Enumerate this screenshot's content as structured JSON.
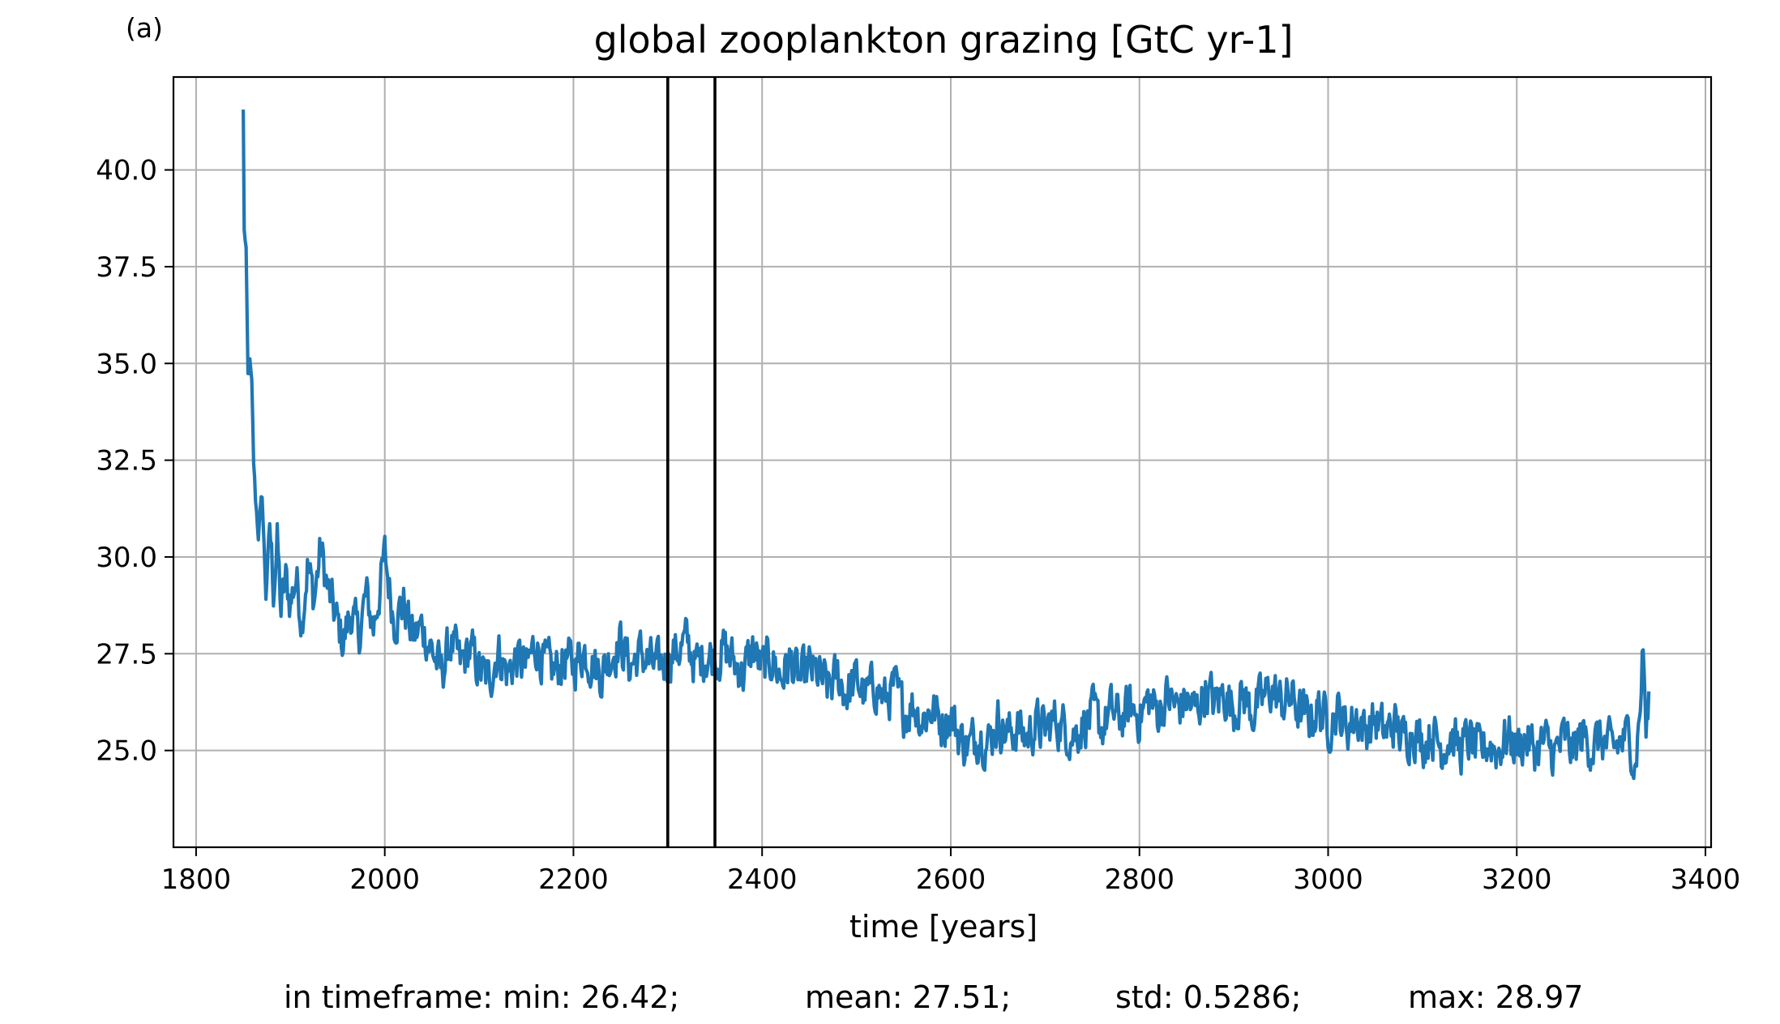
{
  "panel_label": "(a)",
  "colors": {
    "series": "#1f77b4",
    "grid": "#b0b0b0",
    "marker_lines": "#000000",
    "axes": "#000000"
  },
  "stats": {
    "min": "in timeframe: min: 26.42;",
    "mean": "mean: 27.51;",
    "std": "std: 0.5286;",
    "max": "max: 28.97"
  },
  "chart_data": {
    "type": "line",
    "title": "global zooplankton grazing [GtC yr-1]",
    "xlabel": "time [years]",
    "ylabel": "",
    "xlim": [
      1776,
      3406
    ],
    "ylim": [
      22.5,
      42.4
    ],
    "x_ticks": [
      1800,
      2000,
      2200,
      2400,
      2600,
      2800,
      3000,
      3200,
      3400
    ],
    "x_tick_labels": [
      "1800",
      "2000",
      "2200",
      "2400",
      "2600",
      "2800",
      "3000",
      "3200",
      "3400"
    ],
    "y_ticks": [
      25.0,
      27.5,
      30.0,
      32.5,
      35.0,
      37.5,
      40.0
    ],
    "y_tick_labels": [
      "25.0",
      "27.5",
      "30.0",
      "32.5",
      "35.0",
      "37.5",
      "40.0"
    ],
    "grid": true,
    "legend": "none",
    "vertical_lines": [
      2300,
      2350
    ],
    "series": [
      {
        "x_start": 1850,
        "x_end": 3340,
        "points": [
          [
            1850,
            41.5
          ],
          [
            1851,
            38.5
          ],
          [
            1853,
            37.8
          ],
          [
            1855,
            34.6
          ],
          [
            1857,
            35.0
          ],
          [
            1859,
            34.4
          ],
          [
            1861,
            32.4
          ],
          [
            1863,
            31.5
          ],
          [
            1866,
            30.6
          ],
          [
            1870,
            31.6
          ],
          [
            1874,
            29.0
          ],
          [
            1878,
            30.8
          ],
          [
            1882,
            29.2
          ],
          [
            1886,
            30.4
          ],
          [
            1890,
            28.6
          ],
          [
            1895,
            29.4
          ],
          [
            1900,
            28.8
          ],
          [
            1906,
            29.5
          ],
          [
            1912,
            28.4
          ],
          [
            1918,
            29.8
          ],
          [
            1925,
            28.9
          ],
          [
            1932,
            30.2
          ],
          [
            1940,
            29.1
          ],
          [
            1948,
            28.4
          ],
          [
            1956,
            27.8
          ],
          [
            1964,
            28.6
          ],
          [
            1972,
            27.9
          ],
          [
            1980,
            29.0
          ],
          [
            1988,
            28.2
          ],
          [
            2000,
            30.0
          ],
          [
            2010,
            28.4
          ],
          [
            2020,
            28.8
          ],
          [
            2030,
            27.9
          ],
          [
            2040,
            28.2
          ],
          [
            2050,
            27.6
          ],
          [
            2060,
            27.0
          ],
          [
            2070,
            27.8
          ],
          [
            2080,
            27.2
          ],
          [
            2090,
            27.6
          ],
          [
            2100,
            27.1
          ],
          [
            2110,
            26.8
          ],
          [
            2120,
            27.6
          ],
          [
            2130,
            27.0
          ],
          [
            2140,
            27.4
          ],
          [
            2150,
            27.1
          ],
          [
            2160,
            27.8
          ],
          [
            2170,
            27.2
          ],
          [
            2180,
            27.0
          ],
          [
            2190,
            27.4
          ],
          [
            2200,
            27.2
          ],
          [
            2210,
            27.6
          ],
          [
            2220,
            27.3
          ],
          [
            2230,
            27.0
          ],
          [
            2240,
            27.5
          ],
          [
            2250,
            27.8
          ],
          [
            2260,
            27.2
          ],
          [
            2270,
            27.5
          ],
          [
            2280,
            27.3
          ],
          [
            2290,
            27.1
          ],
          [
            2300,
            27.4
          ],
          [
            2310,
            27.6
          ],
          [
            2320,
            27.8
          ],
          [
            2330,
            27.2
          ],
          [
            2340,
            27.5
          ],
          [
            2350,
            27.4
          ],
          [
            2360,
            27.6
          ],
          [
            2370,
            27.3
          ],
          [
            2380,
            27.0
          ],
          [
            2390,
            27.6
          ],
          [
            2400,
            27.1
          ],
          [
            2410,
            27.4
          ],
          [
            2420,
            26.9
          ],
          [
            2430,
            27.3
          ],
          [
            2440,
            26.8
          ],
          [
            2450,
            27.1
          ],
          [
            2460,
            26.9
          ],
          [
            2470,
            26.6
          ],
          [
            2480,
            26.9
          ],
          [
            2490,
            26.5
          ],
          [
            2500,
            26.8
          ],
          [
            2510,
            26.4
          ],
          [
            2520,
            26.7
          ],
          [
            2530,
            26.3
          ],
          [
            2540,
            26.6
          ],
          [
            2550,
            26.0
          ],
          [
            2560,
            26.2
          ],
          [
            2570,
            25.8
          ],
          [
            2580,
            26.1
          ],
          [
            2590,
            25.7
          ],
          [
            2600,
            25.9
          ],
          [
            2610,
            25.3
          ],
          [
            2620,
            25.1
          ],
          [
            2630,
            25.5
          ],
          [
            2640,
            25.2
          ],
          [
            2650,
            25.8
          ],
          [
            2660,
            25.4
          ],
          [
            2670,
            25.6
          ],
          [
            2680,
            25.3
          ],
          [
            2690,
            25.7
          ],
          [
            2700,
            25.5
          ],
          [
            2710,
            25.8
          ],
          [
            2720,
            25.6
          ],
          [
            2730,
            25.4
          ],
          [
            2740,
            25.7
          ],
          [
            2750,
            25.9
          ],
          [
            2760,
            25.6
          ],
          [
            2770,
            26.0
          ],
          [
            2780,
            25.8
          ],
          [
            2790,
            26.1
          ],
          [
            2800,
            25.9
          ],
          [
            2810,
            26.3
          ],
          [
            2820,
            26.0
          ],
          [
            2830,
            26.4
          ],
          [
            2840,
            26.1
          ],
          [
            2850,
            26.3
          ],
          [
            2860,
            26.0
          ],
          [
            2870,
            26.6
          ],
          [
            2880,
            26.2
          ],
          [
            2890,
            26.5
          ],
          [
            2900,
            26.1
          ],
          [
            2910,
            26.4
          ],
          [
            2920,
            26.0
          ],
          [
            2930,
            26.3
          ],
          [
            2940,
            26.6
          ],
          [
            2950,
            26.2
          ],
          [
            2960,
            26.4
          ],
          [
            2970,
            26.0
          ],
          [
            2980,
            25.8
          ],
          [
            2990,
            26.1
          ],
          [
            3000,
            25.7
          ],
          [
            3010,
            26.0
          ],
          [
            3020,
            25.6
          ],
          [
            3030,
            25.9
          ],
          [
            3040,
            25.5
          ],
          [
            3050,
            25.8
          ],
          [
            3060,
            25.4
          ],
          [
            3070,
            25.7
          ],
          [
            3080,
            25.3
          ],
          [
            3090,
            25.6
          ],
          [
            3100,
            25.2
          ],
          [
            3110,
            25.5
          ],
          [
            3120,
            25.1
          ],
          [
            3130,
            25.4
          ],
          [
            3140,
            25.0
          ],
          [
            3150,
            25.3
          ],
          [
            3160,
            24.9
          ],
          [
            3170,
            25.2
          ],
          [
            3180,
            25.0
          ],
          [
            3190,
            25.4
          ],
          [
            3200,
            25.1
          ],
          [
            3210,
            25.3
          ],
          [
            3220,
            25.0
          ],
          [
            3230,
            25.2
          ],
          [
            3240,
            24.9
          ],
          [
            3250,
            25.3
          ],
          [
            3260,
            25.0
          ],
          [
            3270,
            25.4
          ],
          [
            3280,
            25.1
          ],
          [
            3290,
            25.3
          ],
          [
            3300,
            25.0
          ],
          [
            3310,
            25.2
          ],
          [
            3320,
            25.4
          ],
          [
            3325,
            24.6
          ],
          [
            3330,
            25.8
          ],
          [
            3334,
            27.7
          ],
          [
            3337,
            25.5
          ],
          [
            3340,
            26.0
          ]
        ],
        "noise_amplitude": 0.55
      }
    ]
  }
}
